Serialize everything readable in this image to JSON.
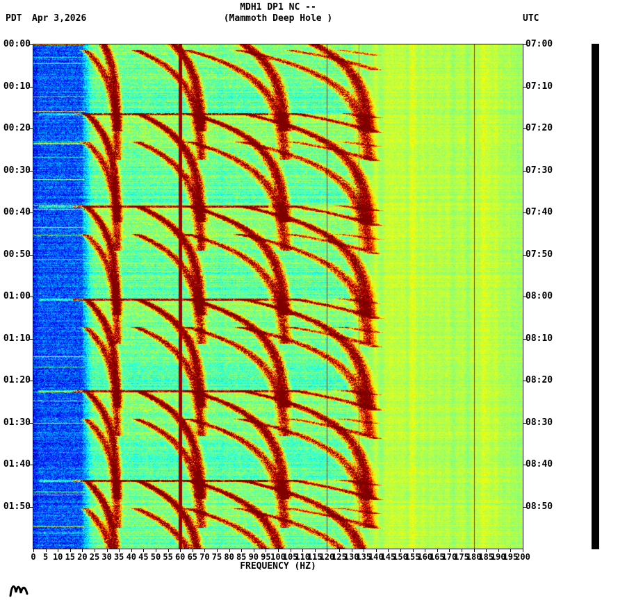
{
  "header": {
    "station_line": "MDH1 DP1 NC --",
    "location_line": "(Mammoth Deep Hole )",
    "left_timezone": "PDT",
    "date": "Apr 3,2026",
    "right_timezone": "UTC"
  },
  "axes": {
    "xlabel": "FREQUENCY (HZ)",
    "freq_tick_labels": [
      "0",
      "5",
      "10",
      "15",
      "20",
      "25",
      "30",
      "35",
      "40",
      "45",
      "50",
      "55",
      "60",
      "65",
      "70",
      "75",
      "80",
      "85",
      "90",
      "95",
      "100",
      "105",
      "110",
      "115",
      "120",
      "125",
      "130",
      "135",
      "140",
      "145",
      "150",
      "155",
      "160",
      "165",
      "170",
      "175",
      "180",
      "185",
      "190",
      "195",
      "200"
    ],
    "left_time_labels": [
      "00:00",
      "00:10",
      "00:20",
      "00:30",
      "00:40",
      "00:50",
      "01:00",
      "01:10",
      "01:20",
      "01:30",
      "01:40",
      "01:50"
    ],
    "right_time_labels": [
      "07:00",
      "07:10",
      "07:20",
      "07:30",
      "07:40",
      "07:50",
      "08:00",
      "08:10",
      "08:20",
      "08:30",
      "08:40",
      "08:50"
    ]
  },
  "chart_data": {
    "type": "heatmap",
    "title": "MDH1 DP1 NC --",
    "subtitle": "(Mammoth Deep Hole )",
    "xlabel": "FREQUENCY (HZ)",
    "x_range_hz": [
      0,
      200
    ],
    "x_tick_step_hz": 5,
    "time_axis_left": {
      "timezone": "PDT",
      "start": "00:00",
      "end": "02:00",
      "tick_interval_min": 10
    },
    "time_axis_right": {
      "timezone": "UTC",
      "start": "07:00",
      "end": "09:00",
      "tick_interval_min": 10
    },
    "date": "Apr 3,2026",
    "colormap": "jet",
    "features": {
      "noise_bands": [
        {
          "range_hz": [
            0,
            21
          ],
          "level": 0.2,
          "noise": 0.24
        },
        {
          "range_hz": [
            21,
            134
          ],
          "level": 0.43,
          "noise": 0.17
        },
        {
          "range_hz": [
            134,
            200
          ],
          "level": 0.555,
          "noise": 0.09
        }
      ],
      "power_line_hz": 60,
      "power_line_harmonic_lines_hz": [
        120,
        180
      ],
      "faint_line_hz": 133,
      "event_onsets_min": [
        -5.5,
        16.2,
        38.3,
        60.4,
        82.2,
        103.6
      ],
      "subevent_offset_min": 6.8,
      "event_duration_min": 26,
      "fundamental_start_hz": 21,
      "fundamental_peak_hz": 34.5,
      "glide_tau_min": 6.5,
      "harmonic_amps": [
        0.85,
        0.95,
        0.9,
        0.8,
        0.62,
        0.45
      ],
      "max_arc_freq_hz": 140
    }
  },
  "side_bar": {
    "color": "#000000"
  }
}
